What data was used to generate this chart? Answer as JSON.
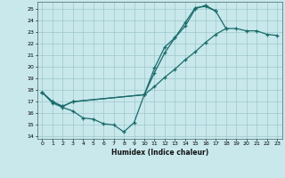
{
  "bg_color": "#c8e8ec",
  "grid_color": "#9ec8cc",
  "line_color": "#1a6b6b",
  "xlabel": "Humidex (Indice chaleur)",
  "xlim": [
    -0.5,
    23.5
  ],
  "ylim": [
    13.8,
    25.6
  ],
  "line1_x": [
    0,
    1,
    2,
    3,
    4,
    5,
    6,
    7,
    8,
    9,
    10,
    11,
    12,
    13,
    14,
    15,
    16,
    17,
    18
  ],
  "line1_y": [
    17.8,
    16.9,
    16.5,
    16.2,
    15.6,
    15.5,
    15.1,
    15.0,
    14.4,
    15.2,
    17.6,
    19.5,
    21.2,
    22.5,
    23.8,
    25.1,
    25.2,
    24.8,
    23.3
  ],
  "line2_x": [
    0,
    1,
    2,
    3,
    10,
    11,
    12,
    13,
    14,
    15,
    16,
    17
  ],
  "line2_y": [
    17.8,
    17.0,
    16.6,
    17.0,
    17.6,
    19.9,
    21.7,
    22.5,
    23.5,
    25.0,
    25.3,
    24.8
  ],
  "line3_x": [
    0,
    1,
    2,
    3,
    10,
    11,
    12,
    13,
    14,
    15,
    16,
    17,
    18,
    19,
    20,
    21,
    22,
    23
  ],
  "line3_y": [
    17.8,
    17.0,
    16.6,
    17.0,
    17.6,
    18.3,
    19.1,
    19.8,
    20.6,
    21.3,
    22.1,
    22.8,
    23.3,
    23.3,
    23.1,
    23.1,
    22.8,
    22.7
  ],
  "yticks": [
    14,
    15,
    16,
    17,
    18,
    19,
    20,
    21,
    22,
    23,
    24,
    25
  ],
  "xticks": [
    0,
    1,
    2,
    3,
    4,
    5,
    6,
    7,
    8,
    9,
    10,
    11,
    12,
    13,
    14,
    15,
    16,
    17,
    18,
    19,
    20,
    21,
    22,
    23
  ]
}
